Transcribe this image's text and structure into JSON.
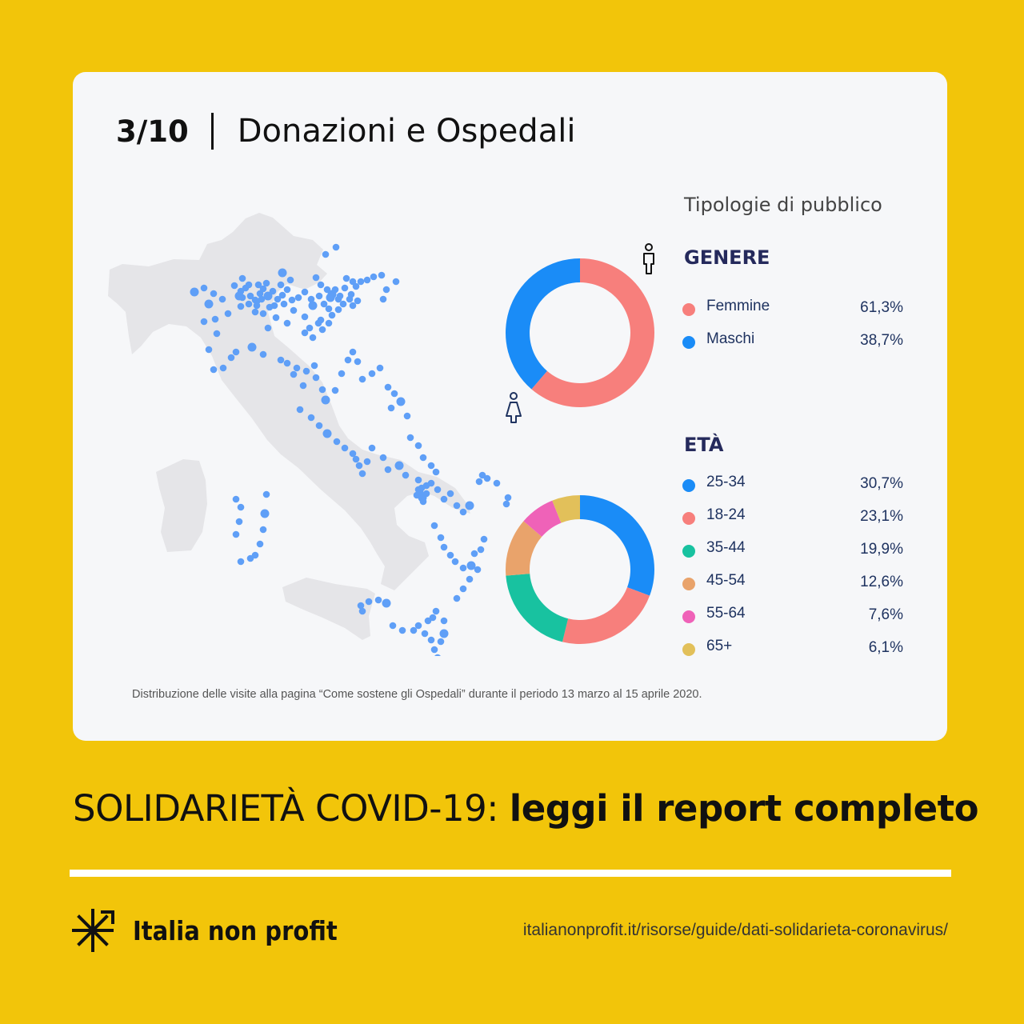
{
  "header": {
    "page_number": "3/10",
    "title": "Donazioni e Ospedali"
  },
  "panel": {
    "title": "Tipologie di pubblico"
  },
  "chart_data": [
    {
      "type": "pie",
      "title": "GENERE",
      "categories": [
        "Femmine",
        "Maschi"
      ],
      "values": [
        61.3,
        38.7
      ],
      "labels": [
        "61,3%",
        "38,7%"
      ],
      "colors": [
        "#f77f7c",
        "#1a8cf7"
      ],
      "donut": true,
      "legend": "right"
    },
    {
      "type": "pie",
      "title": "ETÀ",
      "categories": [
        "25-34",
        "18-24",
        "35-44",
        "45-54",
        "55-64",
        "65+"
      ],
      "values": [
        30.7,
        23.1,
        19.9,
        12.6,
        7.6,
        6.1
      ],
      "labels": [
        "30,7%",
        "23,1%",
        "19,9%",
        "12,6%",
        "7,6%",
        "6,1%"
      ],
      "colors": [
        "#1a8cf7",
        "#f77f7c",
        "#18c2a0",
        "#e9a36b",
        "#ef62b8",
        "#e2c05a"
      ],
      "donut": true,
      "legend": "right"
    }
  ],
  "map": {
    "land_color": "#e5e5e8",
    "dot_color": "#5f9ff7"
  },
  "footnote": "Distribuzione delle visite alla pagina “Come sostene gli Ospedali” durante il periodo 13 marzo al 15 aprile 2020.",
  "footer": {
    "report_prefix": "SOLIDARIETÀ COVID-19:",
    "report_link": "leggi il report completo",
    "brand": "Italia non profit",
    "logo_icon": "asterisk-arrow-icon",
    "url": "italianonprofit.it/risorse/guide/dati-solidarieta-coronavirus/"
  }
}
